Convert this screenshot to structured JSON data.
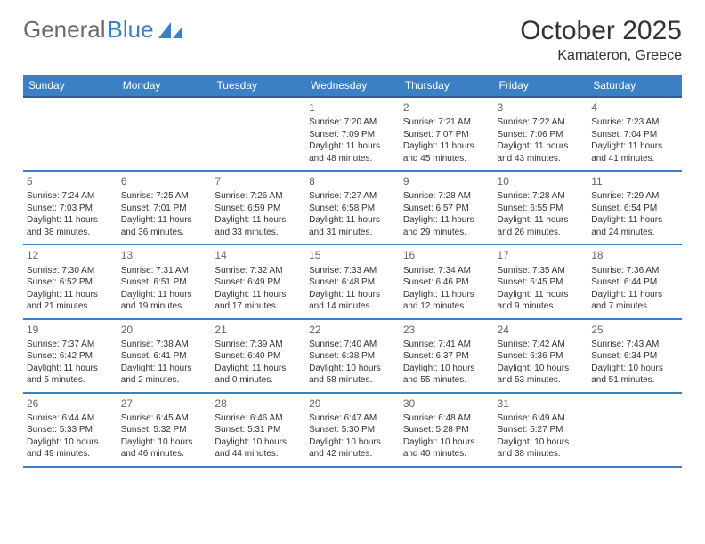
{
  "logo": {
    "part1": "General",
    "part2": "Blue"
  },
  "title": "October 2025",
  "location": "Kamateron, Greece",
  "colors": {
    "header_bg": "#3b7fc4",
    "header_border": "#2d5f94",
    "row_border": "#3b7fc4",
    "text": "#333333",
    "logo_grey": "#6b6b6b",
    "logo_blue": "#3b7fc4"
  },
  "day_headers": [
    "Sunday",
    "Monday",
    "Tuesday",
    "Wednesday",
    "Thursday",
    "Friday",
    "Saturday"
  ],
  "weeks": [
    [
      null,
      null,
      null,
      {
        "n": "1",
        "sr": "7:20 AM",
        "ss": "7:09 PM",
        "dl": "11 hours and 48 minutes."
      },
      {
        "n": "2",
        "sr": "7:21 AM",
        "ss": "7:07 PM",
        "dl": "11 hours and 45 minutes."
      },
      {
        "n": "3",
        "sr": "7:22 AM",
        "ss": "7:06 PM",
        "dl": "11 hours and 43 minutes."
      },
      {
        "n": "4",
        "sr": "7:23 AM",
        "ss": "7:04 PM",
        "dl": "11 hours and 41 minutes."
      }
    ],
    [
      {
        "n": "5",
        "sr": "7:24 AM",
        "ss": "7:03 PM",
        "dl": "11 hours and 38 minutes."
      },
      {
        "n": "6",
        "sr": "7:25 AM",
        "ss": "7:01 PM",
        "dl": "11 hours and 36 minutes."
      },
      {
        "n": "7",
        "sr": "7:26 AM",
        "ss": "6:59 PM",
        "dl": "11 hours and 33 minutes."
      },
      {
        "n": "8",
        "sr": "7:27 AM",
        "ss": "6:58 PM",
        "dl": "11 hours and 31 minutes."
      },
      {
        "n": "9",
        "sr": "7:28 AM",
        "ss": "6:57 PM",
        "dl": "11 hours and 29 minutes."
      },
      {
        "n": "10",
        "sr": "7:28 AM",
        "ss": "6:55 PM",
        "dl": "11 hours and 26 minutes."
      },
      {
        "n": "11",
        "sr": "7:29 AM",
        "ss": "6:54 PM",
        "dl": "11 hours and 24 minutes."
      }
    ],
    [
      {
        "n": "12",
        "sr": "7:30 AM",
        "ss": "6:52 PM",
        "dl": "11 hours and 21 minutes."
      },
      {
        "n": "13",
        "sr": "7:31 AM",
        "ss": "6:51 PM",
        "dl": "11 hours and 19 minutes."
      },
      {
        "n": "14",
        "sr": "7:32 AM",
        "ss": "6:49 PM",
        "dl": "11 hours and 17 minutes."
      },
      {
        "n": "15",
        "sr": "7:33 AM",
        "ss": "6:48 PM",
        "dl": "11 hours and 14 minutes."
      },
      {
        "n": "16",
        "sr": "7:34 AM",
        "ss": "6:46 PM",
        "dl": "11 hours and 12 minutes."
      },
      {
        "n": "17",
        "sr": "7:35 AM",
        "ss": "6:45 PM",
        "dl": "11 hours and 9 minutes."
      },
      {
        "n": "18",
        "sr": "7:36 AM",
        "ss": "6:44 PM",
        "dl": "11 hours and 7 minutes."
      }
    ],
    [
      {
        "n": "19",
        "sr": "7:37 AM",
        "ss": "6:42 PM",
        "dl": "11 hours and 5 minutes."
      },
      {
        "n": "20",
        "sr": "7:38 AM",
        "ss": "6:41 PM",
        "dl": "11 hours and 2 minutes."
      },
      {
        "n": "21",
        "sr": "7:39 AM",
        "ss": "6:40 PM",
        "dl": "11 hours and 0 minutes."
      },
      {
        "n": "22",
        "sr": "7:40 AM",
        "ss": "6:38 PM",
        "dl": "10 hours and 58 minutes."
      },
      {
        "n": "23",
        "sr": "7:41 AM",
        "ss": "6:37 PM",
        "dl": "10 hours and 55 minutes."
      },
      {
        "n": "24",
        "sr": "7:42 AM",
        "ss": "6:36 PM",
        "dl": "10 hours and 53 minutes."
      },
      {
        "n": "25",
        "sr": "7:43 AM",
        "ss": "6:34 PM",
        "dl": "10 hours and 51 minutes."
      }
    ],
    [
      {
        "n": "26",
        "sr": "6:44 AM",
        "ss": "5:33 PM",
        "dl": "10 hours and 49 minutes."
      },
      {
        "n": "27",
        "sr": "6:45 AM",
        "ss": "5:32 PM",
        "dl": "10 hours and 46 minutes."
      },
      {
        "n": "28",
        "sr": "6:46 AM",
        "ss": "5:31 PM",
        "dl": "10 hours and 44 minutes."
      },
      {
        "n": "29",
        "sr": "6:47 AM",
        "ss": "5:30 PM",
        "dl": "10 hours and 42 minutes."
      },
      {
        "n": "30",
        "sr": "6:48 AM",
        "ss": "5:28 PM",
        "dl": "10 hours and 40 minutes."
      },
      {
        "n": "31",
        "sr": "6:49 AM",
        "ss": "5:27 PM",
        "dl": "10 hours and 38 minutes."
      },
      null
    ]
  ]
}
